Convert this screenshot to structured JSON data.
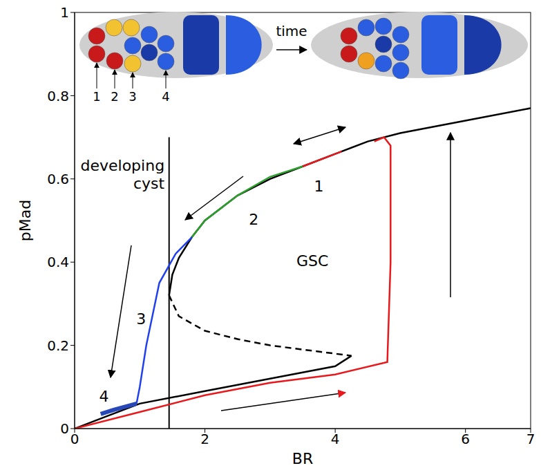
{
  "chart_data": {
    "type": "line",
    "x_label": "BR",
    "y_label": "pMad",
    "xlim": [
      0,
      7
    ],
    "xticks": [
      0,
      2,
      4,
      6,
      7
    ],
    "ylim": [
      0,
      1
    ],
    "yticks": [
      0,
      0.2,
      0.4,
      0.6,
      0.8,
      1
    ],
    "series": [
      {
        "color": "#000000",
        "line_style": "solid",
        "x": [
          1.45,
          1.5,
          1.6,
          1.8,
          2,
          2.5,
          3,
          3.5,
          4,
          4.5,
          5,
          6,
          7
        ],
        "values": [
          0.32,
          0.37,
          0.41,
          0.46,
          0.5,
          0.56,
          0.6,
          0.63,
          0.66,
          0.69,
          0.71,
          0.74,
          0.77
        ]
      },
      {
        "color": "#000000",
        "line_style": "dashed",
        "x": [
          1.45,
          1.6,
          2,
          2.5,
          3,
          3.5,
          4,
          4.25
        ],
        "values": [
          0.32,
          0.27,
          0.235,
          0.215,
          0.2,
          0.19,
          0.18,
          0.175
        ]
      },
      {
        "color": "#000000",
        "line_style": "solid",
        "x": [
          0,
          0.5,
          1,
          2,
          3,
          4,
          4.25
        ],
        "values": [
          0,
          0.03,
          0.06,
          0.09,
          0.12,
          0.15,
          0.175
        ]
      },
      {
        "color": "#e8191c",
        "line_style": "solid",
        "x": [
          0,
          1,
          2,
          3,
          4,
          4.8,
          4.85,
          4.85,
          4.75,
          4.6
        ],
        "values": [
          0,
          0.04,
          0.08,
          0.11,
          0.13,
          0.16,
          0.4,
          0.68,
          0.7,
          0.69
        ]
      },
      {
        "color": "#e8191c",
        "line_style": "solid",
        "x": [
          3.5,
          4,
          4.1
        ],
        "values": [
          0.63,
          0.66,
          0.666
        ]
      },
      {
        "color": "#2ca02c",
        "line_style": "solid",
        "x": [
          3.5,
          3,
          2.5,
          2,
          1.8
        ],
        "values": [
          0.63,
          0.605,
          0.56,
          0.5,
          0.46
        ]
      },
      {
        "color": "#2040f0",
        "line_style": "solid",
        "x": [
          1.8,
          1.55,
          1.3,
          1.1,
          1,
          0.95
        ],
        "values": [
          0.46,
          0.42,
          0.35,
          0.2,
          0.1,
          0.06
        ]
      },
      {
        "color": "#2948b8",
        "line_style": "solid",
        "x": [
          0.95,
          0.6,
          0.4
        ],
        "values": [
          0.06,
          0.045,
          0.035
        ]
      }
    ],
    "vertical_line": {
      "x": 1.45,
      "y": [
        0,
        0.7
      ]
    },
    "annotations": [
      {
        "text": "developing cyst",
        "x": 1.38,
        "y": 0.63
      },
      {
        "text": "GSC",
        "x": 3.65,
        "y": 0.4
      },
      {
        "text": "1",
        "x": 3.75,
        "y": 0.58
      },
      {
        "text": "2",
        "x": 2.75,
        "y": 0.5
      },
      {
        "text": "3",
        "x": 1.02,
        "y": 0.26
      },
      {
        "text": "4",
        "x": 0.45,
        "y": 0.075
      }
    ],
    "inset": {
      "labels": [
        "1",
        "2",
        "3",
        "4"
      ],
      "arrow_text": "time"
    }
  }
}
